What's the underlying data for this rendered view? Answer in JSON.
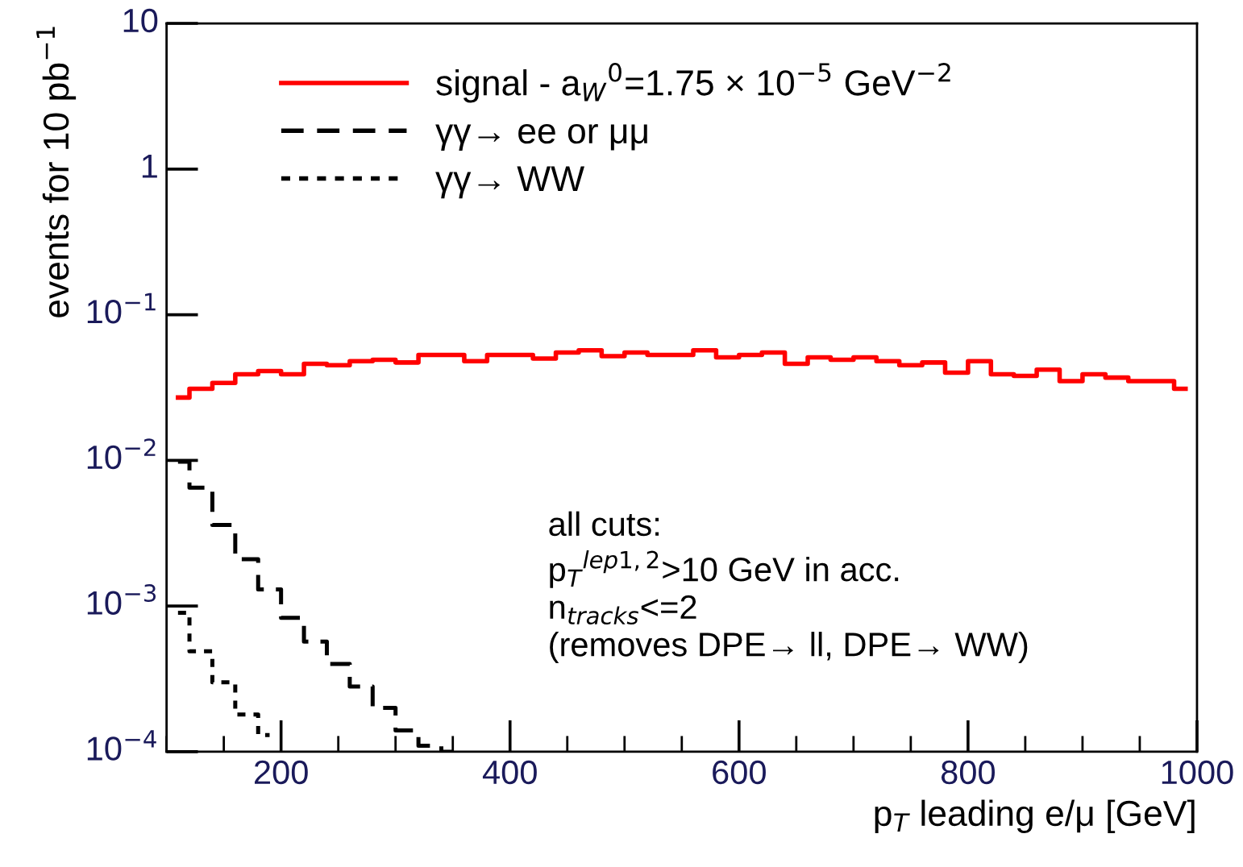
{
  "chart_data": {
    "type": "step",
    "xlabel": "p$_{T}$ leading e/μ [GeV]",
    "ylabel": "events for 10 pb$^{−1}$",
    "series": [
      {
        "name": "signal - a$_{W}$$^{0}$=1.75 × 10$^{−5}$ GeV$^{−2}$",
        "color": "#ff0000",
        "line_style": "solid",
        "x": [
          110,
          130,
          150,
          170,
          190,
          210,
          230,
          250,
          270,
          290,
          310,
          330,
          350,
          370,
          390,
          410,
          430,
          450,
          470,
          490,
          510,
          530,
          550,
          570,
          590,
          610,
          630,
          650,
          670,
          690,
          710,
          730,
          750,
          770,
          790,
          810,
          830,
          850,
          870,
          890,
          910,
          930,
          950,
          970,
          990
        ],
        "values": [
          0.027,
          0.031,
          0.034,
          0.039,
          0.041,
          0.039,
          0.046,
          0.045,
          0.048,
          0.049,
          0.047,
          0.053,
          0.053,
          0.048,
          0.053,
          0.053,
          0.05,
          0.055,
          0.057,
          0.052,
          0.055,
          0.053,
          0.053,
          0.057,
          0.051,
          0.053,
          0.055,
          0.046,
          0.051,
          0.049,
          0.051,
          0.048,
          0.045,
          0.047,
          0.04,
          0.048,
          0.039,
          0.038,
          0.042,
          0.035,
          0.039,
          0.037,
          0.035,
          0.035,
          0.031
        ]
      },
      {
        "name": "γγ→ ee or μμ",
        "color": "#000000",
        "line_style": "dashed",
        "x": [
          110,
          130,
          150,
          170,
          190,
          210,
          230,
          250,
          270,
          290,
          310,
          330,
          350
        ],
        "values": [
          0.0098,
          0.0065,
          0.0036,
          0.0021,
          0.0013,
          0.00083,
          0.00057,
          0.0004,
          0.00028,
          0.0002,
          0.00014,
          0.00011,
          0.0001
        ]
      },
      {
        "name": "γγ→ WW",
        "color": "#000000",
        "line_style": "dotted",
        "x": [
          110,
          130,
          150,
          170,
          190
        ],
        "values": [
          0.0009,
          0.00049,
          0.0003,
          0.00018,
          0.00013
        ]
      }
    ],
    "xlim": [
      100,
      1000
    ],
    "xticks": [
      200,
      400,
      600,
      800,
      1000
    ],
    "ylim": [
      0.0001,
      10
    ],
    "yticks": [
      {
        "value": 0.0001,
        "label": "10$^{−4}$"
      },
      {
        "value": 0.001,
        "label": "10$^{−3}$"
      },
      {
        "value": 0.01,
        "label": "10$^{−2}$"
      },
      {
        "value": 0.1,
        "label": "10$^{−1}$"
      },
      1,
      10
    ],
    "log": "y",
    "grid": false,
    "legend": "top left",
    "annotations": [
      "all cuts:\np$_{T}$$^{lep1,2}$>10 GeV in acc.\nn$_{tracks}$<=2\n(removes DPE→ ll, DPE→ WW)"
    ]
  }
}
